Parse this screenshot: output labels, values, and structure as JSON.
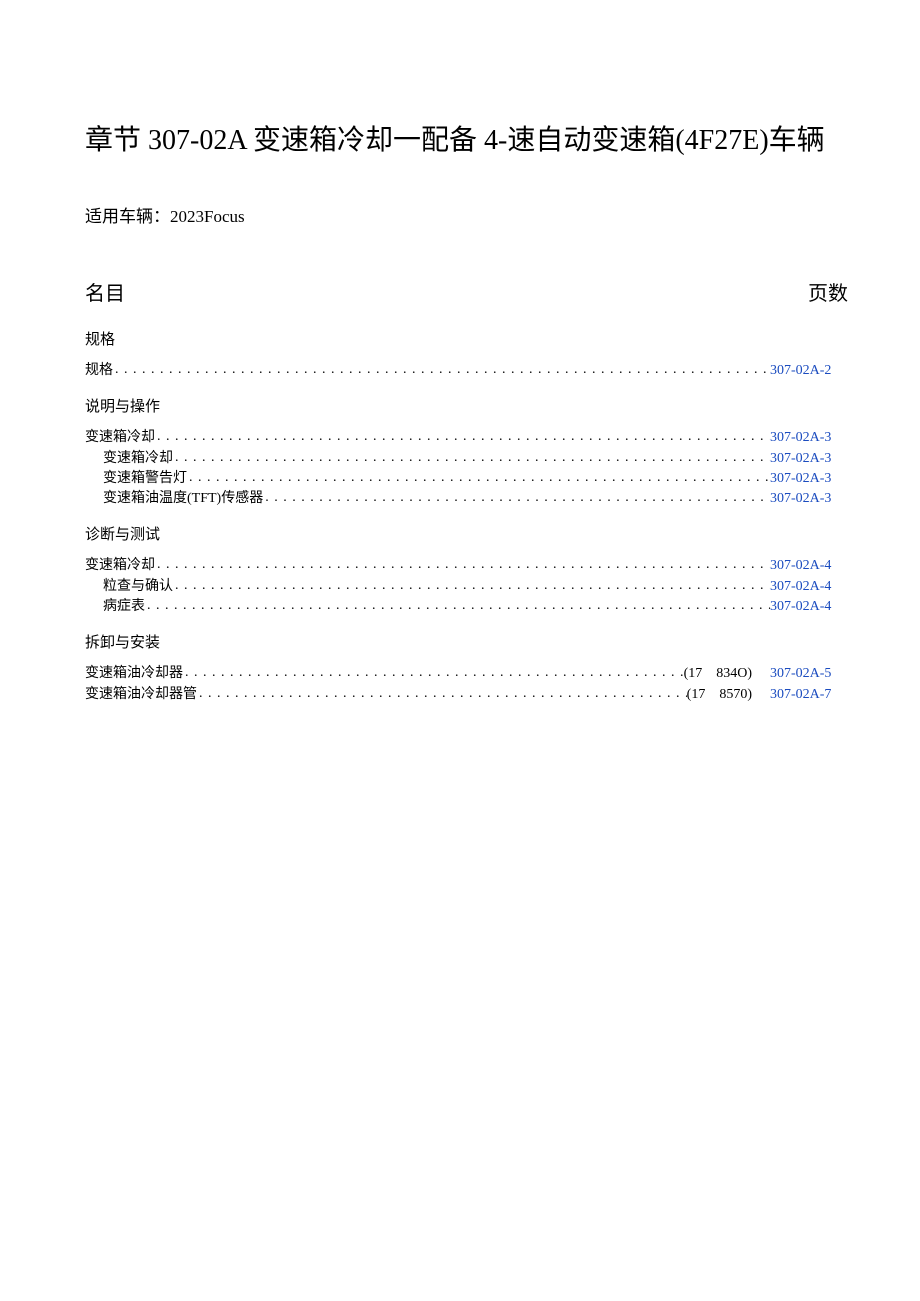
{
  "title": "章节 307-02A 变速箱冷却一配备 4-速自动变速箱(4F27E)车辆",
  "subtitle": "适用车辆：2023Focus",
  "toc_title_left": "名目",
  "toc_title_right": "页数",
  "link_color": "#1a4bbf",
  "text_color": "#000000",
  "background_color": "#ffffff",
  "title_fontsize": 28,
  "body_fontsize": 14,
  "sections": [
    {
      "heading": "规格",
      "entries": [
        {
          "label": "规格",
          "indent": false,
          "code": "",
          "page": "307-02A-2"
        }
      ]
    },
    {
      "heading": "说明与操作",
      "entries": [
        {
          "label": "变速箱冷却",
          "indent": false,
          "code": "",
          "page": "307-02A-3"
        },
        {
          "label": "变速箱冷却",
          "indent": true,
          "code": "",
          "page": "307-02A-3"
        },
        {
          "label": "变速箱警告灯",
          "indent": true,
          "code": "",
          "page": "307-02A-3"
        },
        {
          "label": "变速箱油温度(TFT)传感器",
          "indent": true,
          "code": "",
          "page": "307-02A-3"
        }
      ]
    },
    {
      "heading": "诊断与测试",
      "entries": [
        {
          "label": "变速箱冷却",
          "indent": false,
          "code": "",
          "page": "307-02A-4"
        },
        {
          "label": "粒查与确认",
          "indent": true,
          "code": "",
          "page": "307-02A-4"
        },
        {
          "label": "病症表",
          "indent": true,
          "code": "",
          "page": "307-02A-4"
        }
      ]
    },
    {
      "heading": "拆卸与安装",
      "entries": [
        {
          "label": "变速箱油冷却器",
          "indent": false,
          "code": "(17　834O)",
          "page": "307-02A-5"
        },
        {
          "label": "变速箱油冷却器管",
          "indent": false,
          "code": "(17　8570)",
          "page": "307-02A-7"
        }
      ]
    }
  ]
}
